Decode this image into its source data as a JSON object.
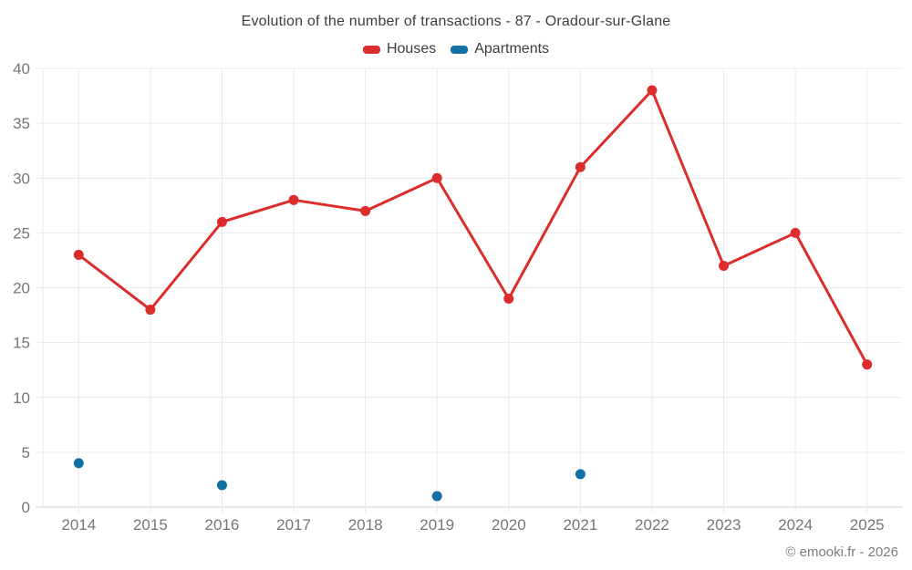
{
  "title": "Evolution of the number of transactions - 87 - Oradour-sur-Glane",
  "legend": {
    "items": [
      {
        "label": "Houses",
        "color": "#dc2d2d"
      },
      {
        "label": "Apartments",
        "color": "#1170a3"
      }
    ]
  },
  "footer": "© emooki.fr - 2026",
  "colors": {
    "grid": "#e9e9e9",
    "axis_line": "#d2d2d2",
    "tick_label": "#747678",
    "title_text": "#3d3d3d"
  },
  "chart_data": {
    "type": "line",
    "categories": [
      "2014",
      "2015",
      "2016",
      "2017",
      "2018",
      "2019",
      "2020",
      "2021",
      "2022",
      "2023",
      "2024",
      "2025"
    ],
    "series": [
      {
        "name": "Houses",
        "type": "line",
        "color": "#dc2d2d",
        "values": [
          23,
          18,
          26,
          28,
          27,
          30,
          19,
          31,
          38,
          22,
          25,
          13
        ]
      },
      {
        "name": "Apartments",
        "type": "scatter",
        "color": "#1170a3",
        "values": [
          4,
          null,
          2,
          null,
          null,
          1,
          null,
          3,
          null,
          null,
          null,
          null
        ]
      }
    ],
    "title": "Evolution of the number of transactions - 87 - Oradour-sur-Glane",
    "xlabel": "",
    "ylabel": "",
    "ylim": [
      0,
      40
    ],
    "yticks": [
      0,
      5,
      10,
      15,
      20,
      25,
      30,
      35,
      40
    ],
    "grid": true,
    "legend_position": "top"
  }
}
